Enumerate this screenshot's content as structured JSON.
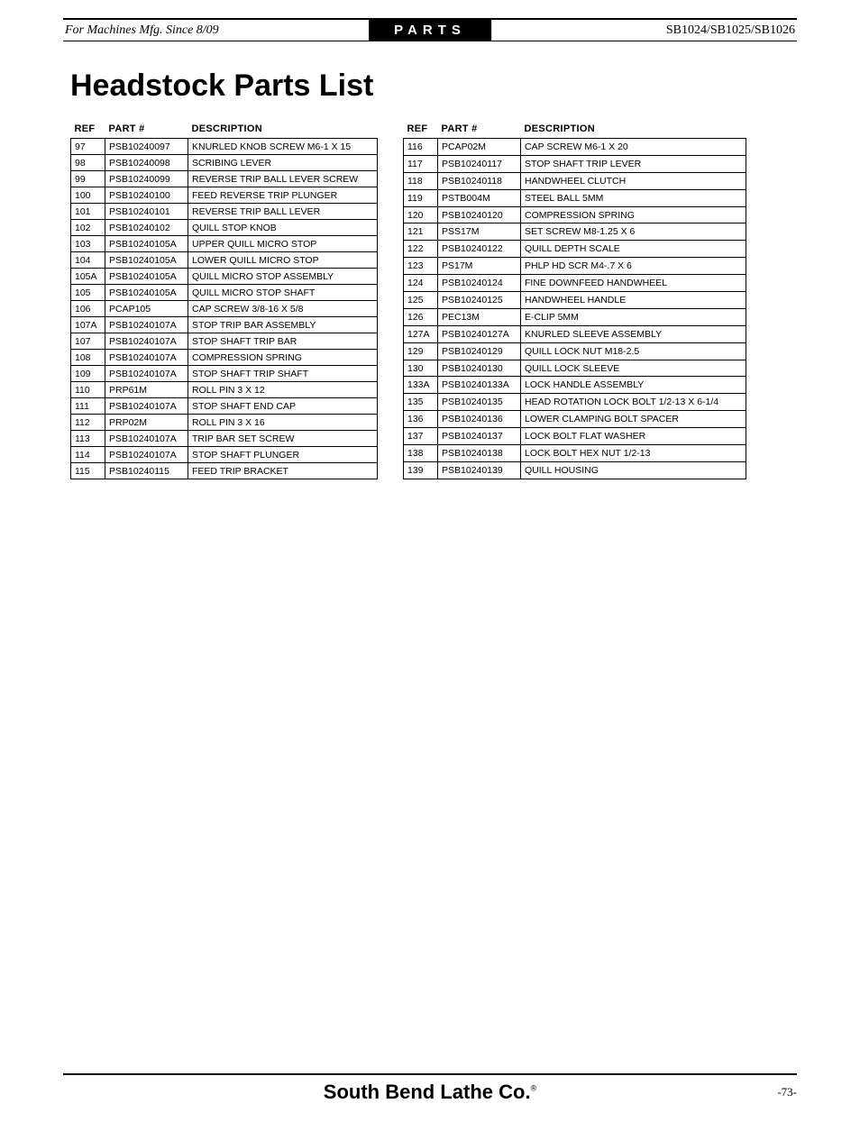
{
  "header": {
    "left": "For Machines Mfg. Since 8/09",
    "center": "PARTS",
    "right": "SB1024/SB1025/SB1026"
  },
  "title": "Headstock Parts List",
  "columns": [
    "REF",
    "PART #",
    "DESCRIPTION"
  ],
  "left_rows": [
    [
      "97",
      "PSB10240097",
      "KNURLED KNOB SCREW M6-1 X 15"
    ],
    [
      "98",
      "PSB10240098",
      "SCRIBING LEVER"
    ],
    [
      "99",
      "PSB10240099",
      "REVERSE TRIP BALL LEVER SCREW"
    ],
    [
      "100",
      "PSB10240100",
      "FEED REVERSE TRIP PLUNGER"
    ],
    [
      "101",
      "PSB10240101",
      "REVERSE TRIP BALL LEVER"
    ],
    [
      "102",
      "PSB10240102",
      "QUILL STOP KNOB"
    ],
    [
      "103",
      "PSB10240105A",
      "UPPER QUILL MICRO STOP"
    ],
    [
      "104",
      "PSB10240105A",
      "LOWER QUILL MICRO STOP"
    ],
    [
      "105A",
      "PSB10240105A",
      "QUILL MICRO STOP ASSEMBLY"
    ],
    [
      "105",
      "PSB10240105A",
      "QUILL MICRO STOP SHAFT"
    ],
    [
      "106",
      "PCAP105",
      "CAP SCREW 3/8-16 X 5/8"
    ],
    [
      "107A",
      "PSB10240107A",
      "STOP TRIP BAR ASSEMBLY"
    ],
    [
      "107",
      "PSB10240107A",
      "STOP SHAFT TRIP BAR"
    ],
    [
      "108",
      "PSB10240107A",
      "COMPRESSION SPRING"
    ],
    [
      "109",
      "PSB10240107A",
      "STOP SHAFT TRIP SHAFT"
    ],
    [
      "110",
      "PRP61M",
      "ROLL PIN 3 X 12"
    ],
    [
      "111",
      "PSB10240107A",
      "STOP SHAFT END CAP"
    ],
    [
      "112",
      "PRP02M",
      "ROLL PIN 3 X 16"
    ],
    [
      "113",
      "PSB10240107A",
      "TRIP BAR SET SCREW"
    ],
    [
      "114",
      "PSB10240107A",
      "STOP SHAFT PLUNGER"
    ],
    [
      "115",
      "PSB10240115",
      "FEED TRIP BRACKET"
    ]
  ],
  "right_rows": [
    [
      "116",
      "PCAP02M",
      "CAP SCREW M6-1 X 20"
    ],
    [
      "117",
      "PSB10240117",
      "STOP SHAFT TRIP LEVER"
    ],
    [
      "118",
      "PSB10240118",
      "HANDWHEEL CLUTCH"
    ],
    [
      "119",
      "PSTB004M",
      "STEEL BALL 5MM"
    ],
    [
      "120",
      "PSB10240120",
      "COMPRESSION SPRING"
    ],
    [
      "121",
      "PSS17M",
      "SET SCREW M8-1.25 X 6"
    ],
    [
      "122",
      "PSB10240122",
      "QUILL DEPTH SCALE"
    ],
    [
      "123",
      "PS17M",
      "PHLP HD SCR M4-.7 X 6"
    ],
    [
      "124",
      "PSB10240124",
      "FINE DOWNFEED HANDWHEEL"
    ],
    [
      "125",
      "PSB10240125",
      "HANDWHEEL HANDLE"
    ],
    [
      "126",
      "PEC13M",
      "E-CLIP 5MM"
    ],
    [
      "127A",
      "PSB10240127A",
      "KNURLED SLEEVE ASSEMBLY"
    ],
    [
      "129",
      "PSB10240129",
      "QUILL LOCK NUT M18-2.5"
    ],
    [
      "130",
      "PSB10240130",
      "QUILL LOCK SLEEVE"
    ],
    [
      "133A",
      "PSB10240133A",
      "LOCK HANDLE ASSEMBLY"
    ],
    [
      "135",
      "PSB10240135",
      "HEAD ROTATION LOCK BOLT 1/2-13 X 6-1/4"
    ],
    [
      "136",
      "PSB10240136",
      "LOWER CLAMPING BOLT SPACER"
    ],
    [
      "137",
      "PSB10240137",
      "LOCK BOLT FLAT WASHER"
    ],
    [
      "138",
      "PSB10240138",
      "LOCK BOLT HEX NUT 1/2-13"
    ],
    [
      "139",
      "PSB10240139",
      "QUILL HOUSING"
    ]
  ],
  "footer": {
    "brand": "South Bend Lathe Co.",
    "page": "-73-"
  }
}
